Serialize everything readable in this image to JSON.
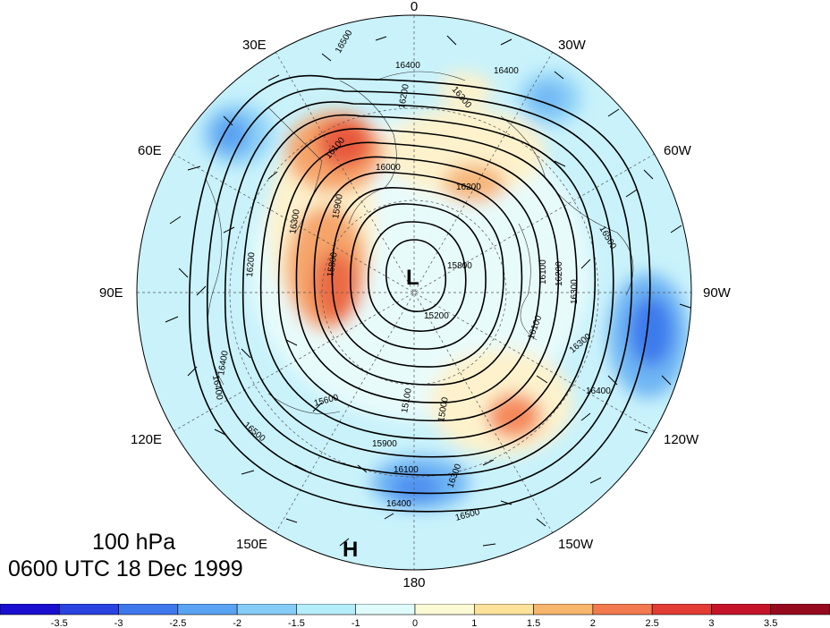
{
  "title": {
    "level": "100 hPa",
    "time": "0600 UTC 18 Dec 1999"
  },
  "longitude_labels": {
    "lon_0": "0",
    "lon_30w": "30W",
    "lon_60w": "60W",
    "lon_90w": "90W",
    "lon_120w": "120W",
    "lon_150w": "150W",
    "lon_180": "180",
    "lon_150e": "150E",
    "lon_120e": "120E",
    "lon_90e": "90E",
    "lon_60e": "60E",
    "lon_30e": "30E"
  },
  "pressure_centers": {
    "low": "L",
    "high": "H"
  },
  "contour_labels": [
    "16500",
    "16400",
    "16400",
    "16200",
    "16300",
    "16100",
    "16000",
    "15900",
    "15800",
    "15800",
    "16200",
    "15200",
    "16100",
    "16300",
    "16400",
    "16500",
    "16200",
    "16300",
    "16400",
    "15600",
    "15100",
    "15000",
    "15900",
    "16100",
    "16300",
    "16400",
    "16500",
    "16500",
    "16400",
    "16300",
    "16200",
    "16100"
  ],
  "contour_interval_gpm": 100,
  "colorbar": {
    "labels": [
      "-3.5",
      "-3",
      "-2.5",
      "-2",
      "-1.5",
      "-1",
      "0",
      "1",
      "1.5",
      "2",
      "2.5",
      "3",
      "3.5"
    ],
    "colors": [
      "#1a0fcf",
      "#2a43e0",
      "#3f78ec",
      "#5aa3f2",
      "#85ccf7",
      "#b4eefa",
      "#e0fbfb",
      "#fdfad6",
      "#fce29a",
      "#f8b56e",
      "#f27a4e",
      "#e23c34",
      "#c5132a",
      "#960a1e"
    ]
  },
  "anomaly_colors": {
    "strong_negative": "#3f78ec",
    "negative": "#85ccf7",
    "weak_negative": "#b4eefa",
    "neutral": "#e0fbfb",
    "weak_positive": "#fdfad6",
    "positive": "#f8b56e",
    "strong_positive": "#e23c34"
  }
}
